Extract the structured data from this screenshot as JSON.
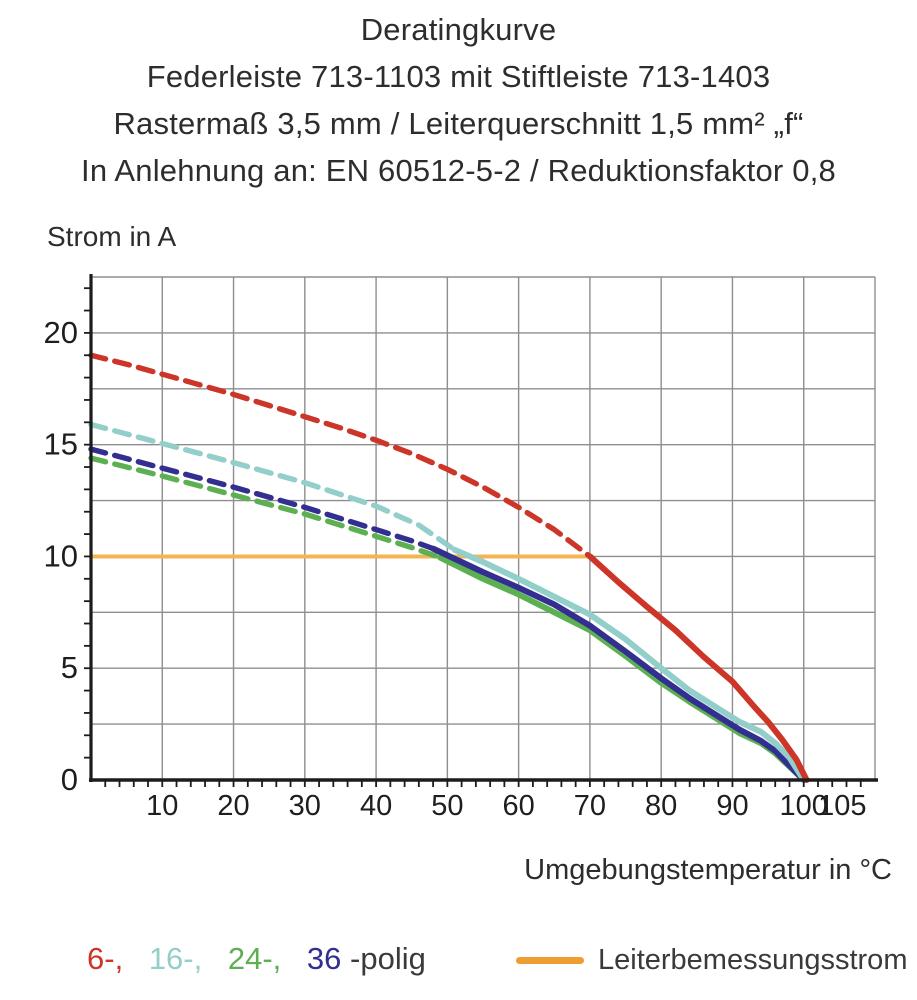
{
  "header": {
    "lines": [
      "Deratingkurve",
      "Federleiste 713-1103 mit Stiftleiste 713-1403",
      "Rastermaß 3,5 mm / Leiterquerschnitt 1,5 mm² „f“",
      "In Anlehnung an: EN 60512-5-2 / Reduktionsfaktor 0,8"
    ]
  },
  "legend": {
    "items": [
      {
        "label": "6-,",
        "color": "#cd3529"
      },
      {
        "label": "16-,",
        "color": "#93cfca"
      },
      {
        "label": "24-,",
        "color": "#5cb052"
      },
      {
        "label": "36",
        "color": "#322f90"
      }
    ],
    "suffix": "-polig",
    "suffix_color": "#3a3a3e",
    "reference": {
      "label": "Leiterbemessungsstrom",
      "color": "#ee9d33"
    }
  },
  "chart_data": {
    "type": "line",
    "title": "Deratingkurve",
    "xlabel": "Umgebungstemperatur in °C",
    "ylabel": "Strom in A",
    "xlim": [
      0,
      110
    ],
    "ylim": [
      0,
      22.5
    ],
    "grid": "on",
    "x_axis": {
      "major_grid_step": 10,
      "minor_tick_step": 2,
      "tick_labels": [
        10,
        20,
        30,
        40,
        50,
        60,
        70,
        80,
        90,
        100,
        105
      ]
    },
    "y_axis": {
      "major_grid_step": 2.5,
      "minor_tick_step": 1,
      "tick_labels": [
        0,
        5,
        10,
        15,
        20
      ]
    },
    "colors": {
      "grid": "#8e8e8e",
      "axis": "#1c1c1c",
      "tick_text": "#1e1e1e"
    },
    "reference_line": {
      "name": "Leiterbemessungsstrom",
      "y": 10,
      "x_start": 0,
      "x_end": 70.5,
      "color": "#f3b552"
    },
    "series": [
      {
        "name": "24-polig",
        "color": "#5cb052",
        "dashed": [
          [
            0,
            14.4
          ],
          [
            10,
            13.6
          ],
          [
            20,
            12.75
          ],
          [
            30,
            11.9
          ],
          [
            40,
            10.9
          ],
          [
            45,
            10.4
          ],
          [
            49,
            9.95
          ]
        ],
        "solid": [
          [
            49,
            9.95
          ],
          [
            55,
            9.0
          ],
          [
            60,
            8.3
          ],
          [
            65,
            7.5
          ],
          [
            70,
            6.7
          ],
          [
            75,
            5.55
          ],
          [
            80,
            4.35
          ],
          [
            84,
            3.5
          ],
          [
            88,
            2.7
          ],
          [
            91,
            2.1
          ],
          [
            94,
            1.65
          ],
          [
            96,
            1.2
          ],
          [
            98,
            0.6
          ],
          [
            100,
            0
          ]
        ]
      },
      {
        "name": "36-polig",
        "color": "#322f90",
        "dashed": [
          [
            0,
            14.8
          ],
          [
            10,
            13.95
          ],
          [
            20,
            13.1
          ],
          [
            30,
            12.2
          ],
          [
            40,
            11.2
          ],
          [
            45,
            10.7
          ],
          [
            48,
            10.35
          ]
        ],
        "solid": [
          [
            48,
            10.35
          ],
          [
            55,
            9.3
          ],
          [
            60,
            8.6
          ],
          [
            65,
            7.85
          ],
          [
            70,
            6.9
          ],
          [
            75,
            5.75
          ],
          [
            80,
            4.55
          ],
          [
            84,
            3.65
          ],
          [
            88,
            2.85
          ],
          [
            91,
            2.25
          ],
          [
            94,
            1.75
          ],
          [
            96,
            1.3
          ],
          [
            98,
            0.65
          ],
          [
            100,
            0
          ]
        ]
      },
      {
        "name": "16-polig",
        "color": "#93cfca",
        "dashed": [
          [
            0,
            15.9
          ],
          [
            10,
            15.05
          ],
          [
            20,
            14.2
          ],
          [
            30,
            13.3
          ],
          [
            40,
            12.25
          ],
          [
            46,
            11.4
          ],
          [
            51,
            10.3
          ]
        ],
        "solid": [
          [
            51,
            10.3
          ],
          [
            55,
            9.75
          ],
          [
            60,
            9.0
          ],
          [
            65,
            8.2
          ],
          [
            70,
            7.4
          ],
          [
            75,
            6.3
          ],
          [
            80,
            5.0
          ],
          [
            84,
            4.0
          ],
          [
            88,
            3.2
          ],
          [
            91,
            2.6
          ],
          [
            94,
            2.15
          ],
          [
            96,
            1.65
          ],
          [
            98,
            1.0
          ],
          [
            100,
            0
          ]
        ]
      },
      {
        "name": "6-polig",
        "color": "#cd3529",
        "dashed": [
          [
            0,
            19.0
          ],
          [
            5,
            18.6
          ],
          [
            10,
            18.15
          ],
          [
            15,
            17.7
          ],
          [
            20,
            17.25
          ],
          [
            25,
            16.75
          ],
          [
            30,
            16.25
          ],
          [
            35,
            15.75
          ],
          [
            40,
            15.2
          ],
          [
            45,
            14.6
          ],
          [
            50,
            13.9
          ],
          [
            55,
            13.1
          ],
          [
            60,
            12.2
          ],
          [
            65,
            11.2
          ],
          [
            70,
            10.0
          ]
        ],
        "solid": [
          [
            70,
            10.0
          ],
          [
            74,
            8.85
          ],
          [
            78,
            7.75
          ],
          [
            82,
            6.7
          ],
          [
            86,
            5.5
          ],
          [
            90,
            4.4
          ],
          [
            93,
            3.3
          ],
          [
            95,
            2.6
          ],
          [
            97,
            1.8
          ],
          [
            99,
            0.9
          ],
          [
            100.4,
            0
          ]
        ]
      }
    ]
  }
}
